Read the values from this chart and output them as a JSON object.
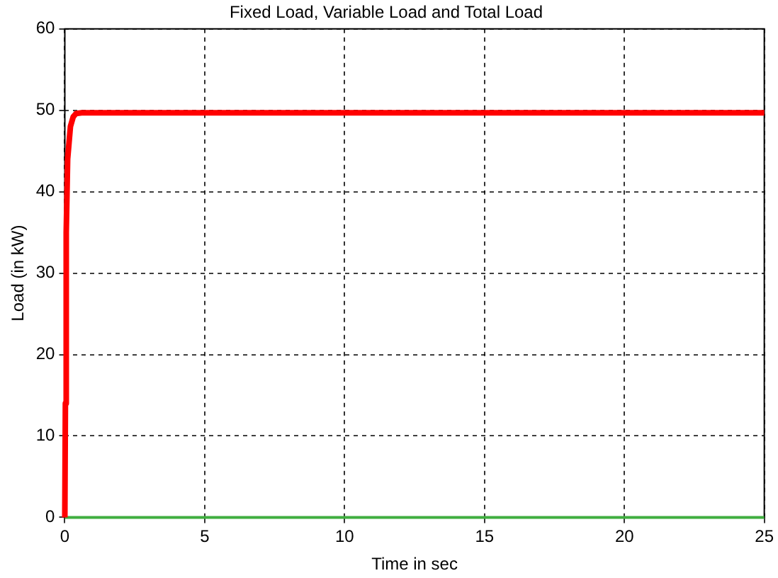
{
  "chart_data": {
    "type": "line",
    "title": "Fixed Load, Variable Load and Total Load",
    "xlabel": "Time in sec",
    "ylabel": "Load (in kW)",
    "xlim": [
      0,
      25
    ],
    "xticks": [
      0,
      5,
      10,
      15,
      20,
      25
    ],
    "ylim": [
      0,
      60
    ],
    "yticks": [
      0,
      10,
      20,
      30,
      40,
      50,
      60
    ],
    "grid": true,
    "legend": false,
    "marker": "none",
    "line_style": "solid",
    "series": [
      {
        "color": "#ff0000",
        "x": [
          0,
          0.02,
          0.05,
          0.1,
          0.15,
          0.2,
          0.3,
          0.4,
          0.6,
          1,
          5,
          10,
          15,
          20,
          25
        ],
        "values": [
          0,
          14,
          35,
          44,
          46,
          48,
          49.2,
          49.6,
          49.7,
          49.7,
          49.7,
          49.7,
          49.7,
          49.7,
          49.7
        ]
      },
      {
        "color": "#3fae3f",
        "x": [
          0,
          25
        ],
        "values": [
          0,
          0
        ]
      }
    ]
  }
}
